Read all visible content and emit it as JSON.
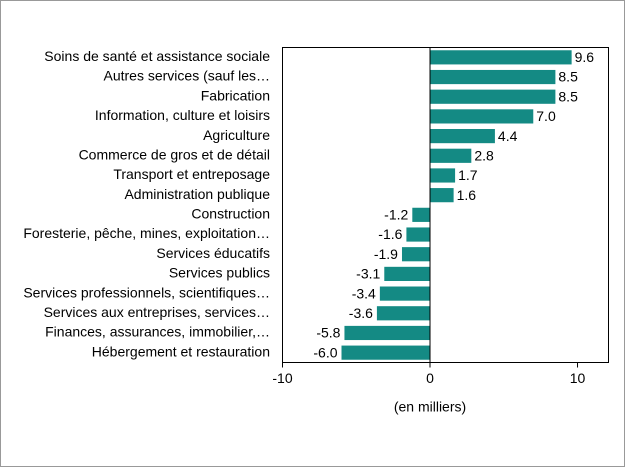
{
  "chart_data": {
    "type": "hbar",
    "categories": [
      "Soins de santé et assistance sociale",
      "Autres services (sauf les…",
      "Fabrication",
      "Information, culture et loisirs",
      "Agriculture",
      "Commerce de gros et de détail",
      "Transport et entreposage",
      "Administration publique",
      "Construction",
      "Foresterie, pêche, mines, exploitation…",
      "Services éducatifs",
      "Services publics",
      "Services professionnels, scientifiques…",
      "Services aux entreprises, services…",
      "Finances, assurances, immobilier,…",
      "Hébergement et restauration"
    ],
    "values": [
      9.6,
      8.5,
      8.5,
      7.0,
      4.4,
      2.8,
      1.7,
      1.6,
      -1.2,
      -1.6,
      -1.9,
      -3.1,
      -3.4,
      -3.6,
      -5.8,
      -6.0
    ],
    "value_labels": [
      "9.6",
      "8.5",
      "8.5",
      "7.0",
      "4.4",
      "2.8",
      "1.7",
      "1.6",
      "-1.2",
      "-1.6",
      "-1.9",
      "-3.1",
      "-3.4",
      "-3.6",
      "-5.8",
      "-6.0"
    ],
    "color": "#148a84",
    "xlim": [
      -10,
      12.1
    ],
    "xticks": [
      -10,
      0,
      10
    ],
    "x_label": "(en milliers)"
  }
}
